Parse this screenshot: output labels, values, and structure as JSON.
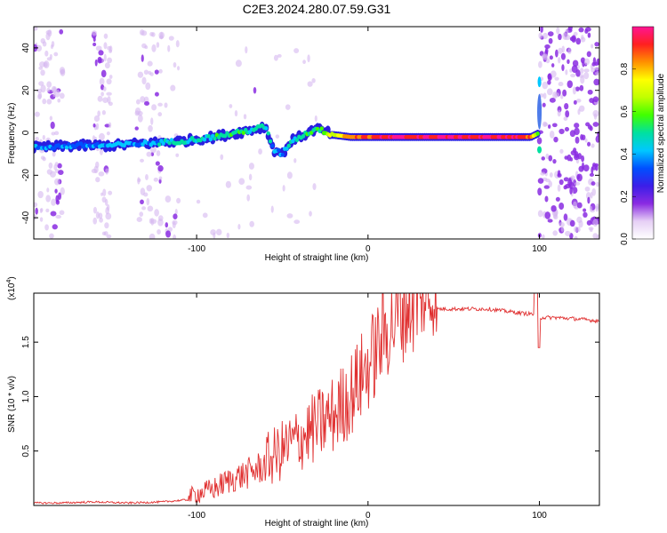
{
  "figure_title": "C2E3.2024.280.07.59.G31",
  "chart_data": [
    {
      "type": "heatmap",
      "panel": "top",
      "xlabel": "Height of straight line (km)",
      "ylabel": "Frequency (Hz)",
      "xlim": [
        -195,
        135
      ],
      "ylim": [
        -50,
        50
      ],
      "x_ticks": [
        -100,
        0,
        100
      ],
      "y_ticks": [
        -40,
        -20,
        0,
        20,
        40
      ],
      "colorbar": {
        "label": "Normalized spectral amplitude",
        "range": [
          0,
          1
        ],
        "ticks": [
          "0.0",
          "0.2",
          "0.4",
          "0.6",
          "0.8"
        ],
        "colors": [
          "#ffffff",
          "#e6d0f5",
          "#8a2be2",
          "#3b1ee8",
          "#0050ff",
          "#00c8ff",
          "#00e0a0",
          "#40ff00",
          "#c0ff00",
          "#ffff00",
          "#ff9000",
          "#ff2020",
          "#ff1493"
        ]
      },
      "ridge": {
        "x": [
          -195,
          -170,
          -150,
          -130,
          -110,
          -90,
          -70,
          -60,
          -55,
          -50,
          -45,
          -40,
          -30,
          -20,
          -10,
          0,
          20,
          40,
          60,
          80,
          95,
          100
        ],
        "y": [
          -7,
          -6,
          -6,
          -5,
          -4,
          -2,
          1,
          3,
          -8,
          -10,
          -4,
          -2,
          2,
          -1,
          -2,
          -2,
          -2,
          -2,
          -2,
          -2,
          -2,
          0
        ],
        "amplitude": [
          0.35,
          0.35,
          0.4,
          0.4,
          0.45,
          0.5,
          0.5,
          0.5,
          0.4,
          0.35,
          0.45,
          0.5,
          0.55,
          0.7,
          0.85,
          0.9,
          0.95,
          0.95,
          0.95,
          0.95,
          0.9,
          0.5
        ]
      }
    },
    {
      "type": "line",
      "panel": "bottom",
      "xlabel": "Height of straight line (km)",
      "ylabel": "SNR (10 * v/v)",
      "multiplier_label": "(x10",
      "multiplier_exponent": "4",
      "multiplier_close": ")",
      "xlim": [
        -195,
        135
      ],
      "ylim": [
        0,
        1.95
      ],
      "x_ticks": [
        -100,
        0,
        100
      ],
      "y_ticks": [
        "0.5",
        "1.0",
        "1.5"
      ],
      "series": [
        {
          "color": "#e03030",
          "x": [
            -195,
            -180,
            -160,
            -140,
            -120,
            -105,
            -100,
            -90,
            -80,
            -70,
            -60,
            -50,
            -40,
            -30,
            -20,
            -10,
            0,
            10,
            20,
            30,
            40,
            50,
            60,
            70,
            80,
            90,
            98,
            100,
            110,
            120,
            135
          ],
          "y": [
            0.02,
            0.02,
            0.03,
            0.02,
            0.03,
            0.05,
            0.08,
            0.12,
            0.2,
            0.25,
            0.32,
            0.42,
            0.52,
            0.62,
            0.72,
            0.9,
            1.15,
            1.45,
            1.65,
            1.75,
            1.8,
            1.8,
            1.8,
            1.8,
            1.78,
            1.76,
            1.75,
            1.72,
            1.72,
            1.71,
            1.69
          ]
        }
      ]
    }
  ]
}
